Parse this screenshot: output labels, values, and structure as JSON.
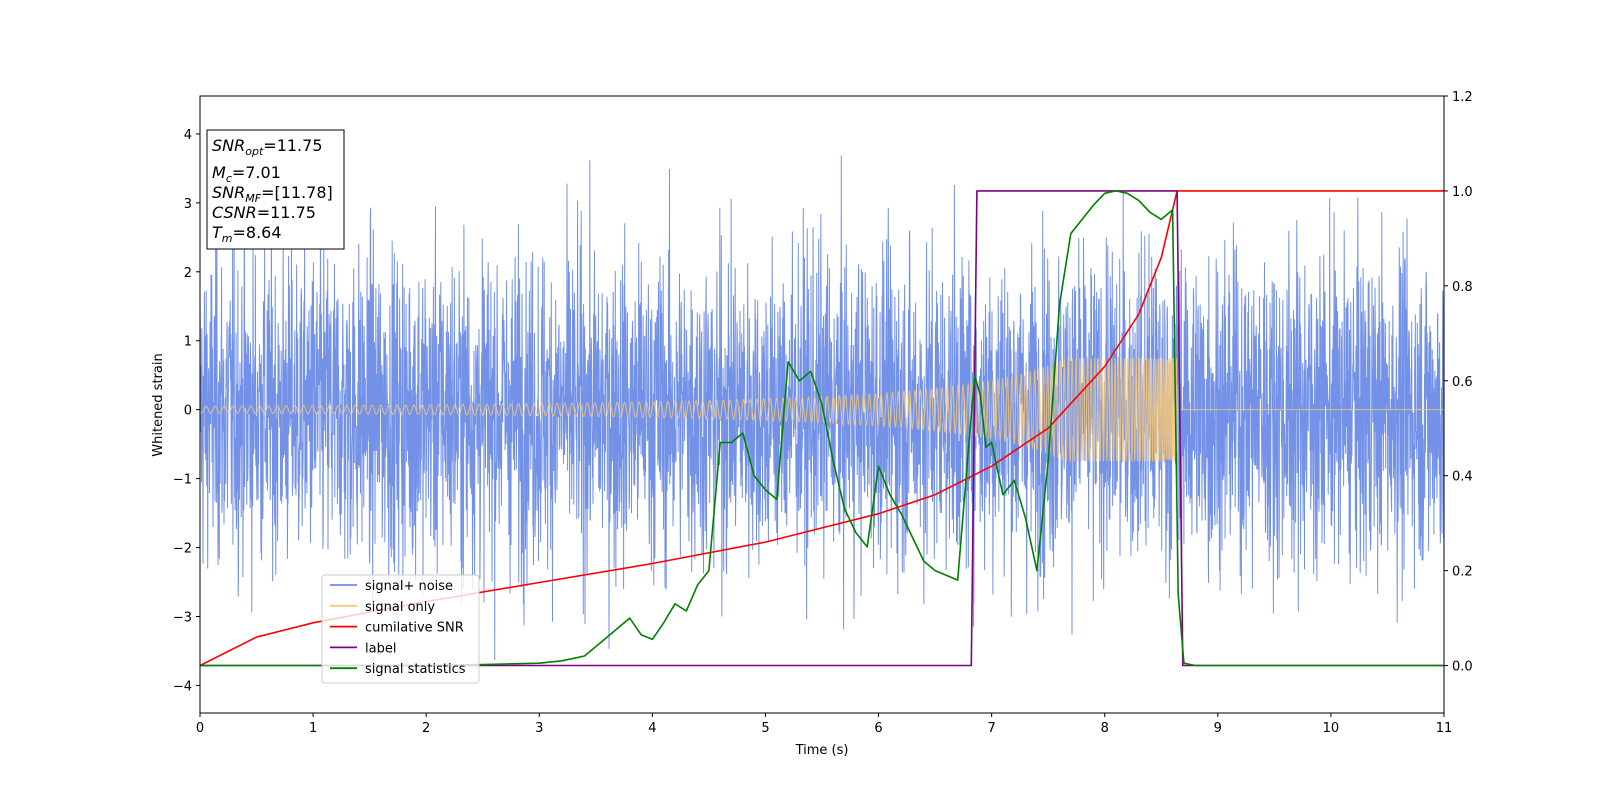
{
  "chart_data": {
    "type": "line",
    "xlabel": "Time (s)",
    "ylabel": "Whitened strain",
    "xlim": [
      0,
      11
    ],
    "ylim_left": [
      -4.4,
      4.55
    ],
    "ylim_right": [
      -0.1,
      1.2
    ],
    "x_ticks": [
      "0",
      "1",
      "2",
      "3",
      "4",
      "5",
      "6",
      "7",
      "8",
      "9",
      "10",
      "11"
    ],
    "y_ticks_left": [
      "4",
      "3",
      "2",
      "1",
      "0",
      "−1",
      "−2",
      "−3",
      "−4"
    ],
    "y_ticks_left_values": [
      4,
      3,
      2,
      1,
      0,
      -1,
      -2,
      -3,
      -4
    ],
    "y_ticks_right": [
      "1.2",
      "1.0",
      "0.8",
      "0.6",
      "0.4",
      "0.2",
      "0.0"
    ],
    "y_ticks_right_values": [
      1.2,
      1.0,
      0.8,
      0.6,
      0.4,
      0.2,
      0.0
    ],
    "info_box": {
      "snr_opt": {
        "base": "SNR",
        "sub": "opt",
        "value": "=11.75"
      },
      "mc": {
        "base": "M",
        "sub": "c",
        "value": "=7.01"
      },
      "snr_mf": {
        "base": "SNR",
        "sub": "MF",
        "value": "=[11.78]"
      },
      "csnr": {
        "base": "CSNR",
        "value": "=11.75"
      },
      "tm": {
        "base": "T",
        "sub": "m",
        "value": "=8.64"
      }
    },
    "series": [
      {
        "name": "signal+ noise",
        "color": "#6b8ce6",
        "axis": "left",
        "description_kind": "noise",
        "noise_std": 1.15,
        "x_range": [
          0,
          11
        ]
      },
      {
        "name": "signal only",
        "color": "#f5c77a",
        "axis": "left",
        "chirp_start": 0,
        "chirp_end": 8.64,
        "amplitude_start": 0.05,
        "amplitude_end": 0.75
      },
      {
        "name": "cumilative SNR",
        "color": "#ff0000",
        "axis": "right",
        "x": [
          0,
          0.5,
          1,
          2,
          3,
          4,
          5,
          5.5,
          6,
          6.5,
          7,
          7.5,
          8,
          8.3,
          8.5,
          8.64,
          8.65,
          11
        ],
        "values": [
          0.0,
          0.06,
          0.09,
          0.135,
          0.175,
          0.215,
          0.26,
          0.29,
          0.32,
          0.36,
          0.42,
          0.5,
          0.63,
          0.74,
          0.86,
          1.0,
          1.0,
          1.0
        ]
      },
      {
        "name": "label",
        "color": "#800080",
        "axis": "right",
        "x": [
          0,
          6.82,
          6.87,
          8.64,
          8.69,
          11
        ],
        "values": [
          0,
          0,
          1,
          1,
          0,
          0
        ]
      },
      {
        "name": "signal statistics",
        "color": "#008000",
        "axis": "right",
        "x": [
          0,
          0.5,
          1,
          1.5,
          2,
          2.5,
          3,
          3.2,
          3.4,
          3.5,
          3.6,
          3.7,
          3.8,
          3.9,
          4.0,
          4.1,
          4.2,
          4.3,
          4.4,
          4.5,
          4.6,
          4.7,
          4.8,
          4.9,
          5.0,
          5.1,
          5.2,
          5.3,
          5.4,
          5.5,
          5.6,
          5.7,
          5.8,
          5.9,
          6.0,
          6.1,
          6.2,
          6.3,
          6.4,
          6.5,
          6.6,
          6.7,
          6.8,
          6.85,
          6.9,
          6.95,
          7.0,
          7.1,
          7.2,
          7.3,
          7.4,
          7.5,
          7.6,
          7.7,
          7.8,
          7.9,
          8.0,
          8.1,
          8.2,
          8.3,
          8.4,
          8.5,
          8.6,
          8.65,
          8.7,
          8.8,
          9,
          10,
          11
        ],
        "values": [
          0.0,
          0.0,
          0.0,
          0.0,
          0.0,
          0.002,
          0.005,
          0.01,
          0.02,
          0.04,
          0.06,
          0.08,
          0.1,
          0.065,
          0.055,
          0.09,
          0.13,
          0.115,
          0.17,
          0.2,
          0.47,
          0.47,
          0.49,
          0.4,
          0.37,
          0.35,
          0.64,
          0.6,
          0.62,
          0.55,
          0.43,
          0.33,
          0.28,
          0.25,
          0.42,
          0.36,
          0.32,
          0.27,
          0.22,
          0.2,
          0.19,
          0.18,
          0.47,
          0.61,
          0.57,
          0.46,
          0.47,
          0.36,
          0.39,
          0.31,
          0.2,
          0.43,
          0.76,
          0.91,
          0.94,
          0.97,
          0.995,
          1.0,
          0.995,
          0.98,
          0.955,
          0.94,
          0.96,
          0.15,
          0.005,
          0.0,
          0.0,
          0.0,
          0.0
        ]
      }
    ],
    "legend_position": "lower left"
  }
}
